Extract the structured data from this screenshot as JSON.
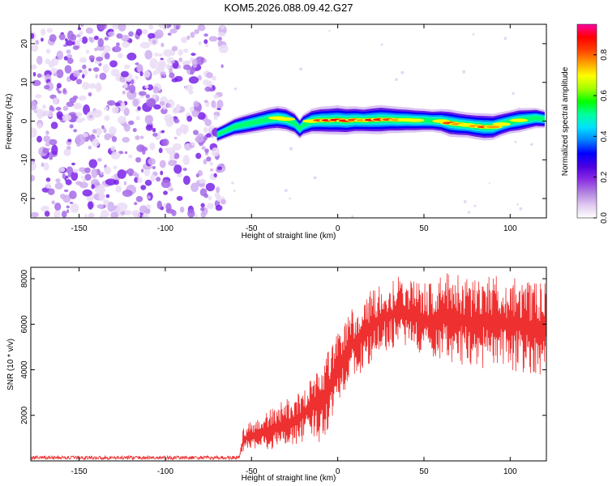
{
  "title": "KOM5.2026.088.09.42.G27",
  "chart_data": [
    {
      "type": "heatmap",
      "name": "spectrogram",
      "xlabel": "Height of straight line (km)",
      "ylabel": "Frequency (Hz)",
      "xlim": [
        -178,
        121
      ],
      "ylim": [
        -25,
        25
      ],
      "xticks": [
        -150,
        -100,
        -50,
        0,
        50,
        100
      ],
      "xtick_labels": [
        "-150",
        "-100",
        "-50",
        "0",
        "50",
        "100"
      ],
      "yticks": [
        -20,
        -10,
        0,
        10,
        20
      ],
      "ytick_labels": [
        "-20",
        "-10",
        "0",
        "10",
        "20"
      ],
      "noise_region_x": [
        -178,
        -66
      ],
      "ridge": {
        "x": [
          -70,
          -65,
          -60,
          -55,
          -50,
          -45,
          -40,
          -35,
          -30,
          -25,
          -22,
          -20,
          -15,
          -10,
          -5,
          0,
          5,
          10,
          15,
          20,
          25,
          30,
          35,
          40,
          45,
          50,
          55,
          60,
          65,
          70,
          75,
          80,
          85,
          90,
          95,
          100,
          105,
          110,
          115,
          120
        ],
        "freq": [
          -3.5,
          -2.5,
          -1.5,
          -1.0,
          -0.5,
          0.0,
          0.5,
          0.8,
          0.5,
          -0.5,
          -2.0,
          -1.0,
          0.0,
          0.2,
          0.2,
          0.3,
          0.1,
          0.3,
          0.2,
          0.3,
          0.4,
          0.4,
          0.3,
          0.3,
          0.2,
          0.2,
          0.1,
          0.0,
          -0.5,
          -0.8,
          -1.0,
          -1.3,
          -1.5,
          -1.5,
          -0.8,
          -0.2,
          0.2,
          0.5,
          0.8,
          0.5
        ],
        "amplitude": [
          0.25,
          0.3,
          0.4,
          0.5,
          0.55,
          0.6,
          0.65,
          0.7,
          0.7,
          0.6,
          0.5,
          0.6,
          0.75,
          0.85,
          0.9,
          0.95,
          0.9,
          0.85,
          0.8,
          0.9,
          0.95,
          0.85,
          0.8,
          0.75,
          0.7,
          0.65,
          0.6,
          0.7,
          0.85,
          0.8,
          0.75,
          0.8,
          0.85,
          0.8,
          0.7,
          0.65,
          0.7,
          0.6,
          0.5,
          0.4
        ]
      }
    },
    {
      "type": "colorbar",
      "name": "colorbar",
      "label": "Normalized spectral amplitude",
      "range": [
        0.0,
        0.95
      ],
      "ticks": [
        0.0,
        0.2,
        0.4,
        0.6,
        0.8
      ],
      "tick_labels": [
        "0.0",
        "0.2",
        "0.4",
        "0.6",
        "0.8"
      ],
      "colors": [
        "#ffffff",
        "#e0c8f0",
        "#b080e0",
        "#8a2be2",
        "#4b00e0",
        "#0000ff",
        "#0080ff",
        "#00e0ff",
        "#00ffa0",
        "#00ff00",
        "#a0ff00",
        "#ffff00",
        "#ffa000",
        "#ff4000",
        "#ff0000",
        "#ff00a0"
      ]
    },
    {
      "type": "line",
      "name": "snr",
      "xlabel": "Height of straight line (km)",
      "ylabel": "SNR (10 * v/v)",
      "xlim": [
        -178,
        121
      ],
      "ylim": [
        0,
        8500
      ],
      "xticks": [
        -150,
        -100,
        -50,
        0,
        50,
        100
      ],
      "xtick_labels": [
        "-150",
        "-100",
        "-50",
        "0",
        "50",
        "100"
      ],
      "yticks": [
        2000,
        4000,
        6000,
        8000
      ],
      "ytick_labels": [
        "2000",
        "4000",
        "6000",
        "8000"
      ],
      "color": "#ee3030",
      "envelope": {
        "x": [
          -178,
          -160,
          -140,
          -120,
          -100,
          -80,
          -60,
          -57,
          -55,
          -50,
          -45,
          -40,
          -35,
          -30,
          -25,
          -20,
          -15,
          -10,
          -5,
          0,
          5,
          10,
          15,
          20,
          25,
          30,
          35,
          40,
          45,
          50,
          55,
          60,
          65,
          70,
          75,
          80,
          85,
          90,
          95,
          100,
          105,
          110,
          115,
          120
        ],
        "low": [
          50,
          50,
          50,
          50,
          50,
          50,
          50,
          60,
          300,
          500,
          400,
          500,
          400,
          600,
          700,
          800,
          1100,
          700,
          1500,
          2600,
          3200,
          3600,
          3900,
          4200,
          4700,
          4900,
          5000,
          4900,
          4800,
          4600,
          4500,
          4400,
          4300,
          4200,
          4150,
          4100,
          4050,
          4000,
          3950,
          3950,
          3900,
          3850,
          3800,
          3800
        ],
        "high": [
          250,
          200,
          250,
          200,
          200,
          200,
          200,
          250,
          1400,
          1800,
          1900,
          2200,
          2500,
          2700,
          2900,
          3200,
          3700,
          4400,
          5000,
          5600,
          6400,
          6800,
          7300,
          7500,
          7700,
          7900,
          8200,
          8100,
          7900,
          7800,
          7900,
          8200,
          8300,
          8300,
          8000,
          8100,
          8300,
          8200,
          8200,
          8000,
          8100,
          7900,
          7800,
          7800
        ]
      }
    }
  ]
}
